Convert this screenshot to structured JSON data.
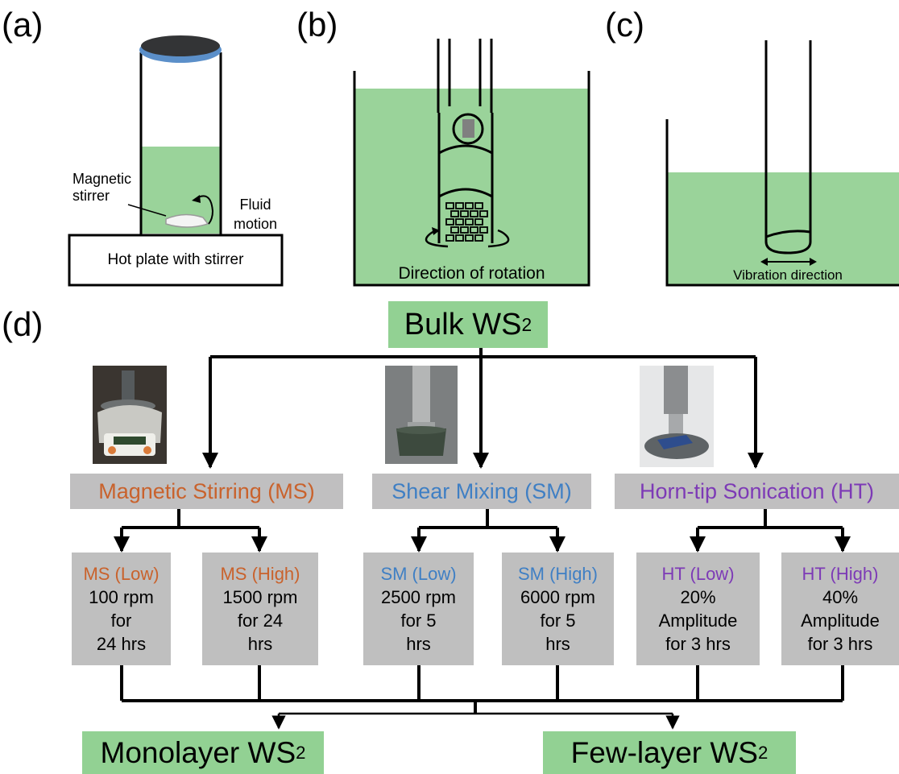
{
  "panels": {
    "a": "(a)",
    "b": "(b)",
    "c": "(c)",
    "d": "(d)"
  },
  "panel_a": {
    "stirrer_label_line1": "Magnetic",
    "stirrer_label_line2": "stirrer",
    "fluid_label_line1": "Fluid",
    "fluid_label_line2": "motion",
    "hotplate_label": "Hot plate with stirrer"
  },
  "panel_b": {
    "rotation_label": "Direction of rotation"
  },
  "panel_c": {
    "vibration_label": "Vibration direction"
  },
  "flow": {
    "bulk": {
      "text": "Bulk WS",
      "sub": "2"
    },
    "methods": [
      {
        "label": "Magnetic Stirring (MS)",
        "color": "#c9622c"
      },
      {
        "label": "Shear Mixing (SM)",
        "color": "#3f7fc4"
      },
      {
        "label": "Horn-tip Sonication (HT)",
        "color": "#7d3ab6"
      }
    ],
    "conditions": [
      {
        "title": "MS (Low)",
        "line1": "100 rpm",
        "line2": "for",
        "line3": "24 hrs"
      },
      {
        "title": "MS (High)",
        "line1": "1500 rpm",
        "line2": "for 24",
        "line3": "hrs"
      },
      {
        "title": "SM (Low)",
        "line1": "2500 rpm",
        "line2": "for 5",
        "line3": "hrs"
      },
      {
        "title": "SM (High)",
        "line1": "6000 rpm",
        "line2": "for 5",
        "line3": "hrs"
      },
      {
        "title": "HT (Low)",
        "line1": "20%",
        "line2": "Amplitude",
        "line3": "for 3 hrs"
      },
      {
        "title": "HT (High)",
        "line1": "40%",
        "line2": "Amplitude",
        "line3": "for 3 hrs"
      }
    ],
    "outputs": [
      {
        "text": "Monolayer WS",
        "sub": "2"
      },
      {
        "text": "Few-layer WS",
        "sub": "2"
      }
    ]
  },
  "colors": {
    "fluid_green": "#9ad39a",
    "box_green": "#92d193",
    "box_gray": "#c0bfc0",
    "rim_blue": "#5b8fc9"
  }
}
